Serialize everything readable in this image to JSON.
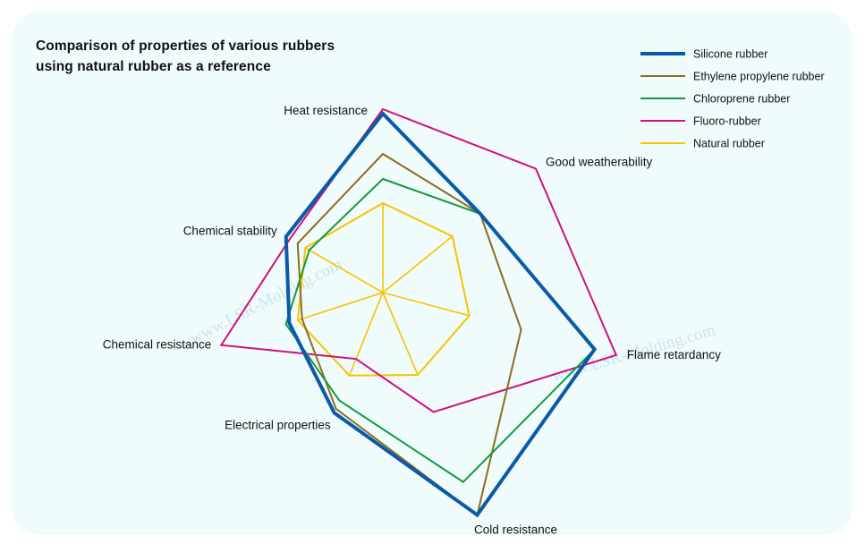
{
  "chart_data": {
    "type": "radar",
    "title": [
      "Comparison of properties of various rubbers",
      "using natural rubber as a reference"
    ],
    "axes": [
      "Heat resistance",
      "Good weatherability",
      "Flame retardancy",
      "Cold resistance",
      "Electrical properties",
      "Chemical resistance",
      "Chemical stability"
    ],
    "reference": "Natural rubber",
    "series": [
      {
        "name": "Silicone rubber",
        "color": "#0b5aa8",
        "width": 4,
        "values": [
          2.0,
          1.4,
          2.45,
          2.7,
          1.45,
          1.1,
          1.25
        ]
      },
      {
        "name": "Ethylene propylene rubber",
        "color": "#8a6e1e",
        "width": 2,
        "values": [
          1.55,
          1.4,
          1.6,
          2.7,
          1.4,
          0.95,
          1.1
        ]
      },
      {
        "name": "Chloroprene rubber",
        "color": "#139a3e",
        "width": 2,
        "values": [
          1.27,
          1.4,
          2.45,
          2.3,
          1.3,
          1.14,
          0.95
        ]
      },
      {
        "name": "Fluoro-rubber",
        "color": "#d0117e",
        "width": 2,
        "values": [
          2.05,
          2.2,
          2.7,
          1.45,
          0.8,
          1.9,
          1.2
        ]
      },
      {
        "name": "Natural rubber",
        "color": "#f7c400",
        "width": 2,
        "values": [
          1,
          1,
          1,
          1,
          1,
          1,
          1
        ]
      }
    ]
  },
  "watermark": "www.LSR-Molding.com"
}
